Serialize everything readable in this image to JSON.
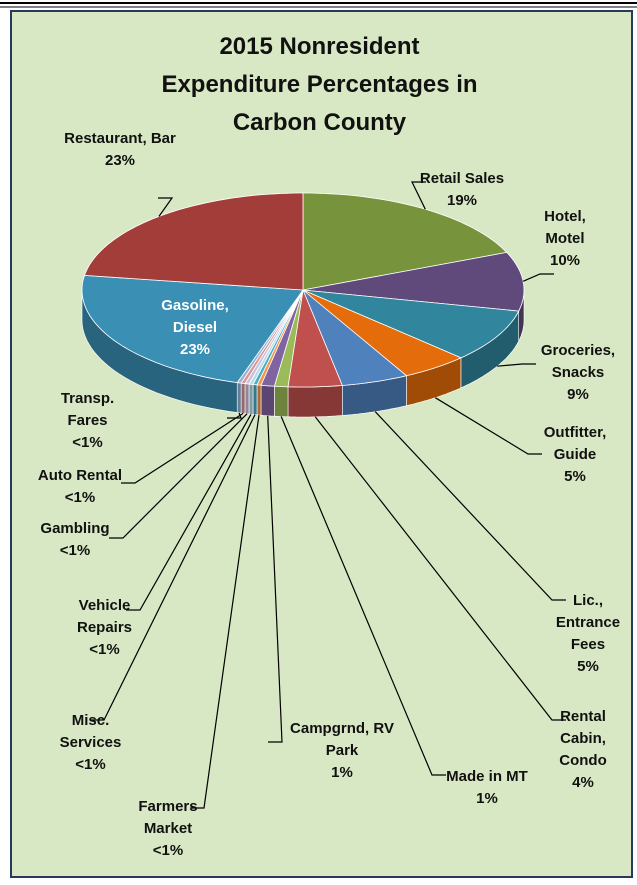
{
  "chart_data": {
    "type": "pie",
    "title": "2015 Nonresident Expenditure Percentages in Carbon County",
    "categories": [
      "Retail Sales",
      "Hotel, Motel",
      "Groceries, Snacks",
      "Outfitter, Guide",
      "Lic., Entrance Fees",
      "Rental Cabin, Condo",
      "Made in MT",
      "Campgrnd, RV Park",
      "Farmers Market",
      "Misc. Services",
      "Vehicle Repairs",
      "Gambling",
      "Auto Rental",
      "Transp. Fares",
      "Gasoline, Diesel",
      "Restaurant, Bar"
    ],
    "values": [
      19,
      10,
      9,
      5,
      5,
      4,
      1,
      1,
      0.3,
      0.3,
      0.3,
      0.3,
      0.3,
      0.3,
      23,
      23
    ],
    "value_labels": [
      "19%",
      "10%",
      "9%",
      "5%",
      "5%",
      "4%",
      "1%",
      "1%",
      "<1%",
      "<1%",
      "<1%",
      "<1%",
      "<1%",
      "<1%",
      "23%",
      "23%"
    ],
    "colors": [
      "#77933c",
      "#604a7b",
      "#31859c",
      "#e46c0a",
      "#4f81bd",
      "#c0504d",
      "#9bbb59",
      "#8064a2",
      "#f79646",
      "#4bacc6",
      "#b7dde8",
      "#ccc1da",
      "#d99694",
      "#95b3d7",
      "#3a8fb5",
      "#a33d3a"
    ]
  }
}
